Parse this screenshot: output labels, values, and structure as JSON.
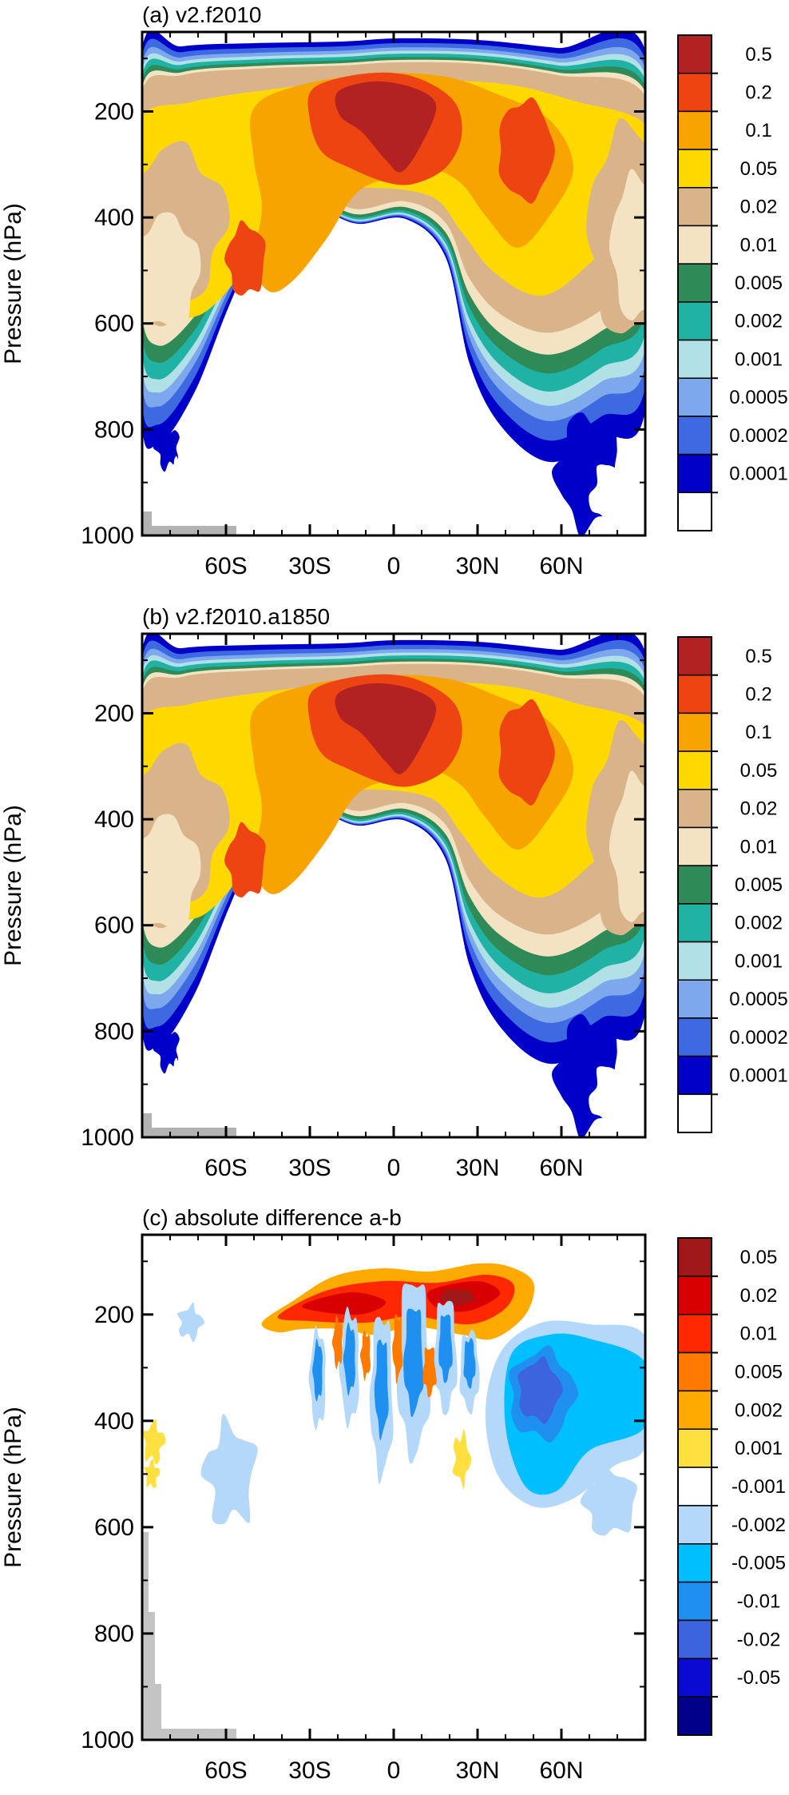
{
  "chart_data": [
    {
      "type": "contour",
      "title": "(a) v2.f2010",
      "ylabel": "Pressure (hPa)",
      "xlabel": "",
      "x_ticks": [
        {
          "label": "60S",
          "value": -60
        },
        {
          "label": "30S",
          "value": -30
        },
        {
          "label": "0",
          "value": 0
        },
        {
          "label": "30N",
          "value": 30
        },
        {
          "label": "60N",
          "value": 60
        }
      ],
      "xlim": [
        -90,
        90
      ],
      "y_ticks": [
        {
          "label": "200",
          "value": 200
        },
        {
          "label": "400",
          "value": 400
        },
        {
          "label": "600",
          "value": 600
        },
        {
          "label": "800",
          "value": 800
        },
        {
          "label": "1000",
          "value": 1000
        }
      ],
      "ylim": [
        1000,
        50
      ],
      "colorbar": {
        "levels": [
          "0.5",
          "0.2",
          "0.1",
          "0.05",
          "0.02",
          "0.01",
          "0.005",
          "0.002",
          "0.001",
          "0.0005",
          "0.0002",
          "0.0001"
        ],
        "colors": [
          "#b22222",
          "#ee4411",
          "#f7a300",
          "#ffd800",
          "#d9b48a",
          "#f4e3c2",
          "#2e8b57",
          "#21b2a6",
          "#b1e0e6",
          "#7ea8ee",
          "#3d6ae0",
          "#0000c8",
          "#ffffff"
        ]
      }
    },
    {
      "type": "contour",
      "title": "(b) v2.f2010.a1850",
      "ylabel": "Pressure (hPa)",
      "xlabel": "",
      "x_ticks": [
        {
          "label": "60S",
          "value": -60
        },
        {
          "label": "30S",
          "value": -30
        },
        {
          "label": "0",
          "value": 0
        },
        {
          "label": "30N",
          "value": 30
        },
        {
          "label": "60N",
          "value": 60
        }
      ],
      "xlim": [
        -90,
        90
      ],
      "y_ticks": [
        {
          "label": "200",
          "value": 200
        },
        {
          "label": "400",
          "value": 400
        },
        {
          "label": "600",
          "value": 600
        },
        {
          "label": "800",
          "value": 800
        },
        {
          "label": "1000",
          "value": 1000
        }
      ],
      "ylim": [
        1000,
        50
      ],
      "colorbar": {
        "levels": [
          "0.5",
          "0.2",
          "0.1",
          "0.05",
          "0.02",
          "0.01",
          "0.005",
          "0.002",
          "0.001",
          "0.0005",
          "0.0002",
          "0.0001"
        ],
        "colors": [
          "#b22222",
          "#ee4411",
          "#f7a300",
          "#ffd800",
          "#d9b48a",
          "#f4e3c2",
          "#2e8b57",
          "#21b2a6",
          "#b1e0e6",
          "#7ea8ee",
          "#3d6ae0",
          "#0000c8",
          "#ffffff"
        ]
      }
    },
    {
      "type": "contour",
      "title": "(c) absolute difference a-b",
      "ylabel": "Pressure (hPa)",
      "xlabel": "",
      "x_ticks": [
        {
          "label": "60S",
          "value": -60
        },
        {
          "label": "30S",
          "value": -30
        },
        {
          "label": "0",
          "value": 0
        },
        {
          "label": "30N",
          "value": 30
        },
        {
          "label": "60N",
          "value": 60
        }
      ],
      "xlim": [
        -90,
        90
      ],
      "y_ticks": [
        {
          "label": "200",
          "value": 200
        },
        {
          "label": "400",
          "value": 400
        },
        {
          "label": "600",
          "value": 600
        },
        {
          "label": "800",
          "value": 800
        },
        {
          "label": "1000",
          "value": 1000
        }
      ],
      "ylim": [
        1000,
        50
      ],
      "colorbar": {
        "levels": [
          "0.05",
          "0.02",
          "0.01",
          "0.005",
          "0.002",
          "0.001",
          "-0.001",
          "-0.002",
          "-0.005",
          "-0.01",
          "-0.02",
          "-0.05"
        ],
        "colors": [
          "#a01818",
          "#d80000",
          "#ff2800",
          "#ff7a00",
          "#ffaa00",
          "#ffe040",
          "#ffffff",
          "#b4d8fa",
          "#00bfff",
          "#2090f0",
          "#3c64dc",
          "#0a0ad2",
          "#00008b"
        ]
      }
    }
  ]
}
